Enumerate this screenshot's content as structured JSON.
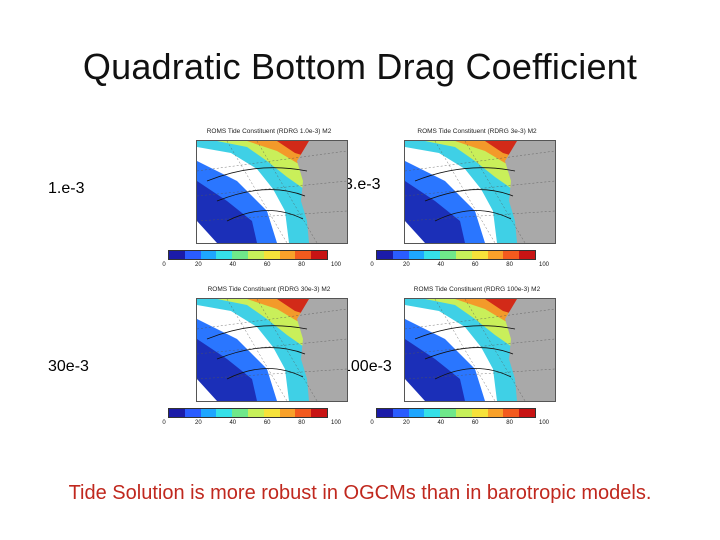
{
  "slide": {
    "title": "Quadratic Bottom Drag Coefficient",
    "footer": "Tide Solution is more robust in OGCMs than in  barotropic models."
  },
  "panels": [
    {
      "label": "1.e-3",
      "map_title": "ROMS Tide Constituent (RDRG 1.0e-3) M2"
    },
    {
      "label": "3.e-3",
      "map_title": "ROMS Tide Constituent (RDRG 3e-3) M2"
    },
    {
      "label": "30e-3",
      "map_title": "ROMS Tide Constituent (RDRG 30e-3) M2"
    },
    {
      "label": "100e-3",
      "map_title": "ROMS Tide Constituent (RDRG 100e-3) M2"
    }
  ],
  "colorbar": {
    "ticks": [
      "0",
      "20",
      "40",
      "60",
      "80",
      "100"
    ],
    "colors": [
      "#1b1ba8",
      "#2a5cff",
      "#1ea6ff",
      "#35e0e8",
      "#6fe88a",
      "#c6f05a",
      "#f6e23a",
      "#f9a12a",
      "#f35a1e",
      "#c81414"
    ]
  },
  "colors": {
    "footer": "#c0281e",
    "land": "#a9a9a9"
  }
}
